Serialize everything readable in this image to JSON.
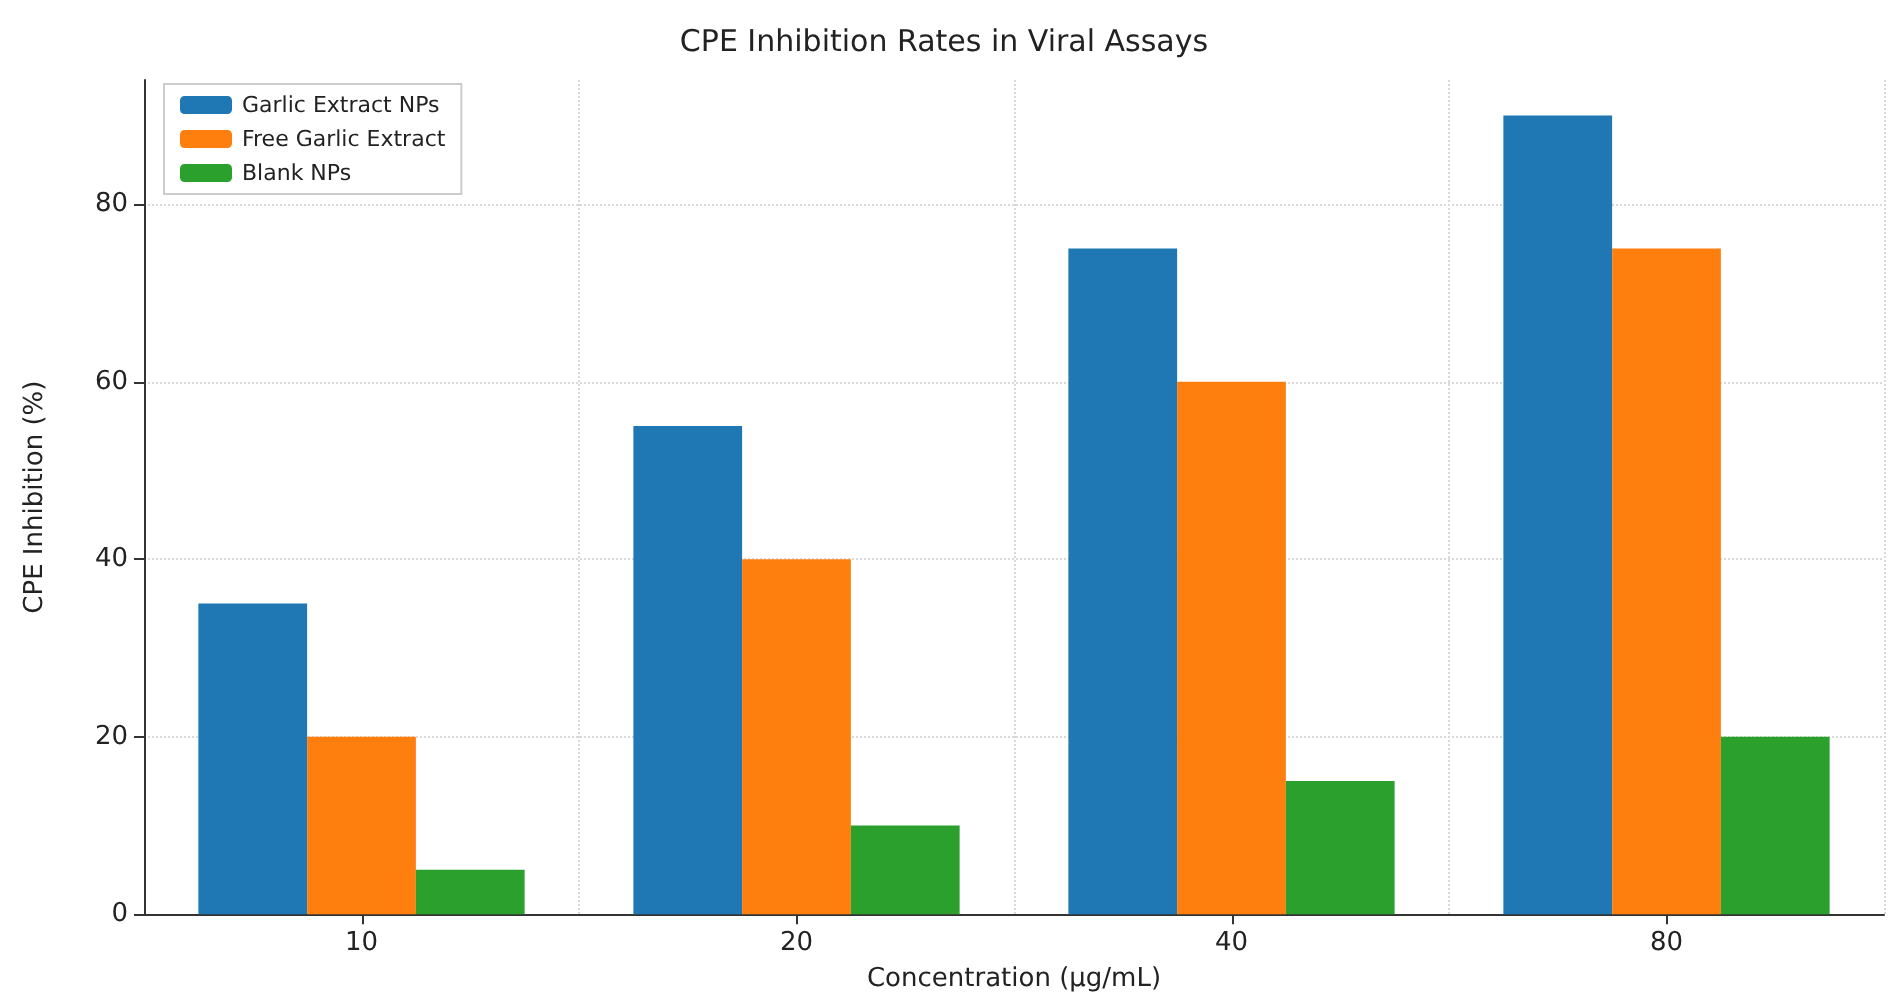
{
  "chart_data": {
    "type": "bar",
    "title": "CPE Inhibition Rates in Viral Assays",
    "xlabel": "Concentration (µg/mL)",
    "ylabel": "CPE Inhibition (%)",
    "categories": [
      "10",
      "20",
      "40",
      "80"
    ],
    "series": [
      {
        "name": "Garlic Extract NPs",
        "color": "#1f77b4",
        "values": [
          35,
          55,
          75,
          90
        ]
      },
      {
        "name": "Free Garlic Extract",
        "color": "#ff7f0e",
        "values": [
          20,
          40,
          60,
          75
        ]
      },
      {
        "name": "Blank NPs",
        "color": "#2ca02c",
        "values": [
          5,
          10,
          15,
          20
        ]
      }
    ],
    "ylim": [
      0,
      94
    ],
    "yticks": [
      0,
      20,
      40,
      60,
      80
    ],
    "grid": true,
    "legend": "top left"
  }
}
